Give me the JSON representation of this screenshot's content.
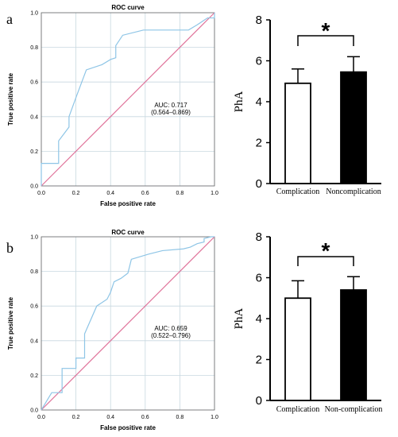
{
  "panels": [
    {
      "letter": "a"
    },
    {
      "letter": "b"
    }
  ],
  "chart_data": [
    {
      "type": "line",
      "panel": "a",
      "title": "ROC curve",
      "xlabel": "False positive rate",
      "ylabel": "True positive rate",
      "xlim": [
        0,
        1
      ],
      "ylim": [
        0,
        1
      ],
      "xticks": [
        "0.0",
        "0.2",
        "0.4",
        "0.6",
        "0.8",
        "1.0"
      ],
      "yticks": [
        "0.0",
        "0.2",
        "0.4",
        "0.6",
        "0.8",
        "1.0"
      ],
      "grid": true,
      "annotation": [
        "AUC: 0.717",
        "(0.564–0.869)"
      ],
      "colors": {
        "roc": "#8ec5e6",
        "reference": "#e0739a",
        "grid": "#c8d8e0"
      },
      "series": [
        {
          "points": [
            [
              0,
              0
            ],
            [
              0,
              0.13
            ],
            [
              0.1,
              0.13
            ],
            [
              0.1,
              0.26
            ],
            [
              0.13,
              0.3
            ],
            [
              0.16,
              0.34
            ],
            [
              0.16,
              0.4
            ],
            [
              0.2,
              0.51
            ],
            [
              0.26,
              0.67
            ],
            [
              0.35,
              0.7
            ],
            [
              0.4,
              0.73
            ],
            [
              0.43,
              0.74
            ],
            [
              0.43,
              0.81
            ],
            [
              0.47,
              0.87
            ],
            [
              0.59,
              0.9
            ],
            [
              0.66,
              0.9
            ],
            [
              0.85,
              0.9
            ],
            [
              0.9,
              0.93
            ],
            [
              0.96,
              0.97
            ],
            [
              1,
              0.97
            ],
            [
              1,
              1
            ]
          ]
        },
        {
          "points": [
            [
              0,
              0
            ],
            [
              1,
              1
            ]
          ]
        }
      ]
    },
    {
      "type": "bar",
      "panel": "a",
      "ylabel": "PhA",
      "categories": [
        "Complication",
        "Noncomplication"
      ],
      "values": [
        4.9,
        5.45
      ],
      "error": [
        0.7,
        0.75
      ],
      "ylim": [
        0,
        8
      ],
      "yticks": [
        "0",
        "2",
        "4",
        "6",
        "8"
      ],
      "significance": "*",
      "colors": {
        "Complication": "#ffffff",
        "Noncomplication": "#000000"
      }
    },
    {
      "type": "line",
      "panel": "b",
      "title": "ROC curve",
      "xlabel": "False positive rate",
      "ylabel": "True positive rate",
      "xlim": [
        0,
        1
      ],
      "ylim": [
        0,
        1
      ],
      "xticks": [
        "0.0",
        "0.2",
        "0.4",
        "0.6",
        "0.8",
        "1.0"
      ],
      "yticks": [
        "0.0",
        "0.2",
        "0.4",
        "0.6",
        "0.8",
        "1.0"
      ],
      "grid": true,
      "annotation": [
        "AUC: 0.659",
        "(0.522–0.796)"
      ],
      "colors": {
        "roc": "#8ec5e6",
        "reference": "#e0739a",
        "grid": "#c8d8e0"
      },
      "series": [
        {
          "points": [
            [
              0,
              0
            ],
            [
              0.03,
              0.05
            ],
            [
              0.06,
              0.1
            ],
            [
              0.1,
              0.1
            ],
            [
              0.12,
              0.1
            ],
            [
              0.12,
              0.24
            ],
            [
              0.2,
              0.24
            ],
            [
              0.2,
              0.3
            ],
            [
              0.25,
              0.3
            ],
            [
              0.25,
              0.44
            ],
            [
              0.32,
              0.6
            ],
            [
              0.38,
              0.64
            ],
            [
              0.4,
              0.68
            ],
            [
              0.42,
              0.74
            ],
            [
              0.46,
              0.76
            ],
            [
              0.5,
              0.79
            ],
            [
              0.52,
              0.87
            ],
            [
              0.62,
              0.9
            ],
            [
              0.7,
              0.92
            ],
            [
              0.82,
              0.93
            ],
            [
              0.86,
              0.94
            ],
            [
              0.9,
              0.96
            ],
            [
              0.94,
              0.97
            ],
            [
              0.94,
              0.99
            ],
            [
              0.98,
              1
            ],
            [
              1,
              1
            ]
          ]
        },
        {
          "points": [
            [
              0,
              0
            ],
            [
              1,
              1
            ]
          ]
        }
      ]
    },
    {
      "type": "bar",
      "panel": "b",
      "ylabel": "PhA",
      "categories": [
        "Complication",
        "Non-complication"
      ],
      "values": [
        5.0,
        5.4
      ],
      "error": [
        0.85,
        0.65
      ],
      "ylim": [
        0,
        8
      ],
      "yticks": [
        "0",
        "2",
        "4",
        "6",
        "8"
      ],
      "significance": "*",
      "colors": {
        "Complication": "#ffffff",
        "Non-complication": "#000000"
      }
    }
  ]
}
